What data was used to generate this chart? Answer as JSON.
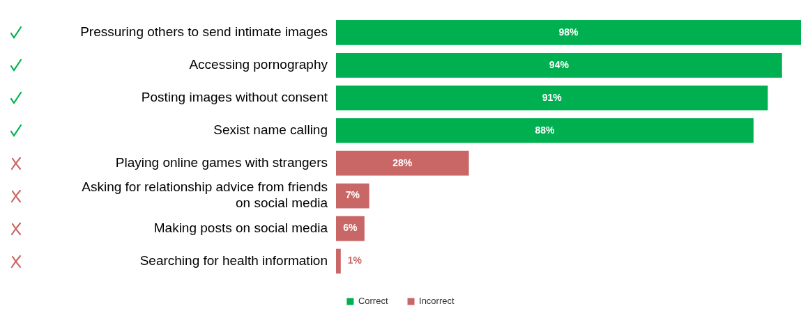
{
  "chart_data": {
    "type": "bar",
    "orientation": "horizontal",
    "stacked": true,
    "legend": "bottom",
    "grid": false,
    "xlim": [
      0,
      98
    ],
    "categories": [
      "Pressuring others to send intimate images",
      "Accessing pornography",
      "Posting images without consent",
      "Sexist name calling",
      "Playing online games with strangers",
      "Asking for relationship advice from friends on social media",
      "Making posts on social media",
      "Searching for health information"
    ],
    "series": [
      {
        "name": "Correct",
        "color": "#00b050",
        "values": [
          98,
          94,
          91,
          88,
          null,
          null,
          null,
          null
        ],
        "value_labels": [
          "98%",
          "94%",
          "91%",
          "88%",
          null,
          null,
          null,
          null
        ]
      },
      {
        "name": "Incorrect",
        "color": "#c96766",
        "values": [
          null,
          null,
          null,
          null,
          28,
          7,
          6,
          1
        ],
        "value_labels": [
          null,
          null,
          null,
          null,
          "28%",
          "7%",
          "6%",
          "1%"
        ]
      }
    ]
  }
}
